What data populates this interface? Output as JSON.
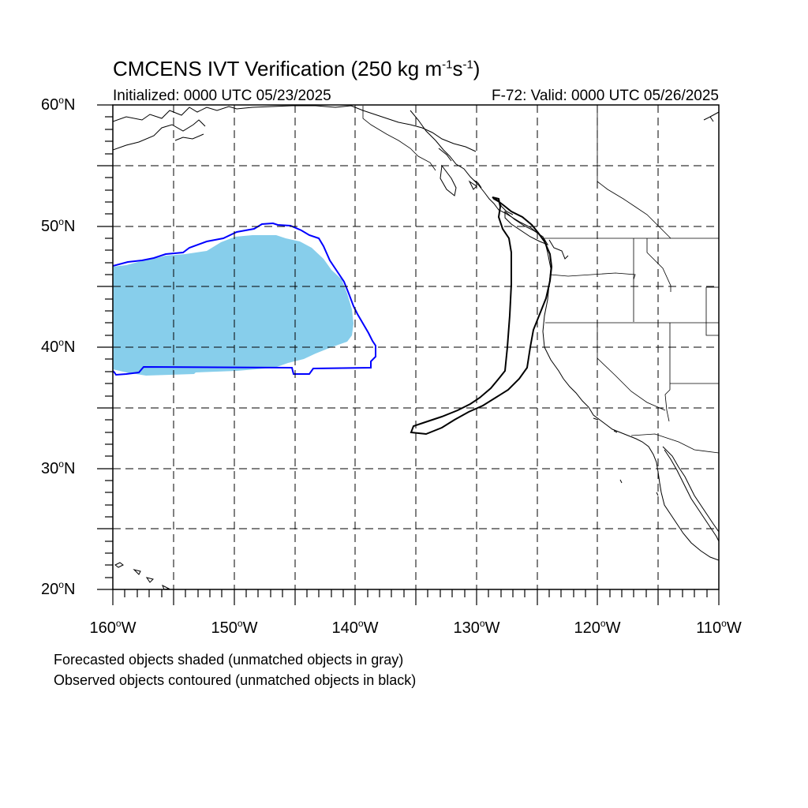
{
  "header": {
    "title_main": "CMCENS IVT Verification (250 kg m",
    "title_exp1": "-1",
    "title_mid": "s",
    "title_exp2": "-1",
    "title_end": ")",
    "initialized": "Initialized: 0000 UTC 05/23/2025",
    "valid": "F-72: Valid: 0000 UTC 05/26/2025"
  },
  "map": {
    "projection": "cylindrical equidistant",
    "lon_range": [
      -160,
      -110
    ],
    "lat_range": [
      20,
      60
    ],
    "lat_labels": [
      {
        "value": "60",
        "suffix": "N"
      },
      {
        "value": "50",
        "suffix": "N"
      },
      {
        "value": "40",
        "suffix": "N"
      },
      {
        "value": "30",
        "suffix": "N"
      },
      {
        "value": "20",
        "suffix": "N"
      }
    ],
    "lon_labels": [
      {
        "value": "160",
        "suffix": "W"
      },
      {
        "value": "150",
        "suffix": "W"
      },
      {
        "value": "140",
        "suffix": "W"
      },
      {
        "value": "130",
        "suffix": "W"
      },
      {
        "value": "120",
        "suffix": "W"
      },
      {
        "value": "110",
        "suffix": "W"
      }
    ],
    "gridline_style": "dashed",
    "colors": {
      "forecast_fill": "#87ceeb",
      "matched_observed_contour": "#0000ff",
      "unmatched_observed_contour": "#000000",
      "coastline": "#000000"
    },
    "forecast_object": {
      "status": "matched",
      "approx_extent": {
        "lon": [
          -160,
          -139
        ],
        "lat": [
          38,
          49.5
        ]
      }
    },
    "observed_objects": [
      {
        "status": "matched",
        "approx_extent": {
          "lon": [
            -160,
            -138
          ],
          "lat": [
            38,
            50.3
          ]
        }
      },
      {
        "status": "unmatched",
        "approx_extent": {
          "lon": [
            -135,
            -124.5
          ],
          "lat": [
            33,
            51
          ]
        }
      }
    ]
  },
  "footer": {
    "line1": "Forecasted objects shaded (unmatched objects in gray)",
    "line2": "Observed objects contoured (unmatched objects in black)"
  }
}
